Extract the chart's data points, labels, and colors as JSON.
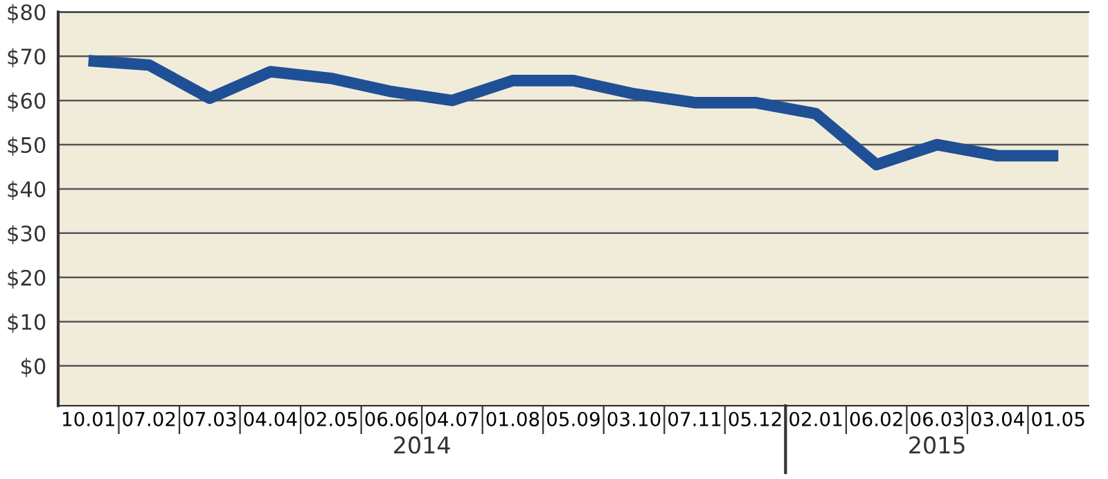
{
  "chart_data": {
    "type": "line",
    "categories": [
      "10.01",
      "07.02",
      "07.03",
      "04.04",
      "02.05",
      "06.06",
      "04.07",
      "01.08",
      "05.09",
      "03.10",
      "07.11",
      "05.12",
      "02.01",
      "06.02",
      "06.03",
      "03.04",
      "01.05"
    ],
    "series": [
      {
        "color": "#1f5096",
        "values": [
          69,
          68,
          60.5,
          66.5,
          65,
          62,
          60,
          64.5,
          64.5,
          61.5,
          59.5,
          59.5,
          57,
          45.5,
          50,
          47.5,
          47.5
        ]
      }
    ],
    "ylim": [
      -9,
      80
    ],
    "yticks": [
      {
        "value": 0,
        "label": "$0"
      },
      {
        "value": 10,
        "label": "$10"
      },
      {
        "value": 20,
        "label": "$20"
      },
      {
        "value": 30,
        "label": "$30"
      },
      {
        "value": 40,
        "label": "$40"
      },
      {
        "value": 50,
        "label": "$50"
      },
      {
        "value": 60,
        "label": "$60"
      },
      {
        "value": 70,
        "label": "$70"
      },
      {
        "value": 80,
        "label": "$80"
      }
    ],
    "grid": "y",
    "marker": "none",
    "line_style": "solid",
    "legend": false,
    "annotations": [
      "2014",
      "2015"
    ]
  }
}
